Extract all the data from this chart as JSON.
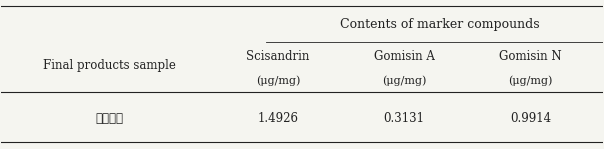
{
  "title": "Contents of marker compounds",
  "col1_header": "Final products sample",
  "sub_headers": [
    "Scisandrin",
    "Gomisin A",
    "Gomisin N"
  ],
  "sub_units": [
    "(μg/mg)",
    "(μg/mg)",
    "(μg/mg)"
  ],
  "row_label": "오구오구",
  "row_values": [
    "1.4926",
    "0.3131",
    "0.9914"
  ],
  "bg_color": "#f5f5f0",
  "text_color": "#222222",
  "font_size": 8.5,
  "title_font_size": 9
}
